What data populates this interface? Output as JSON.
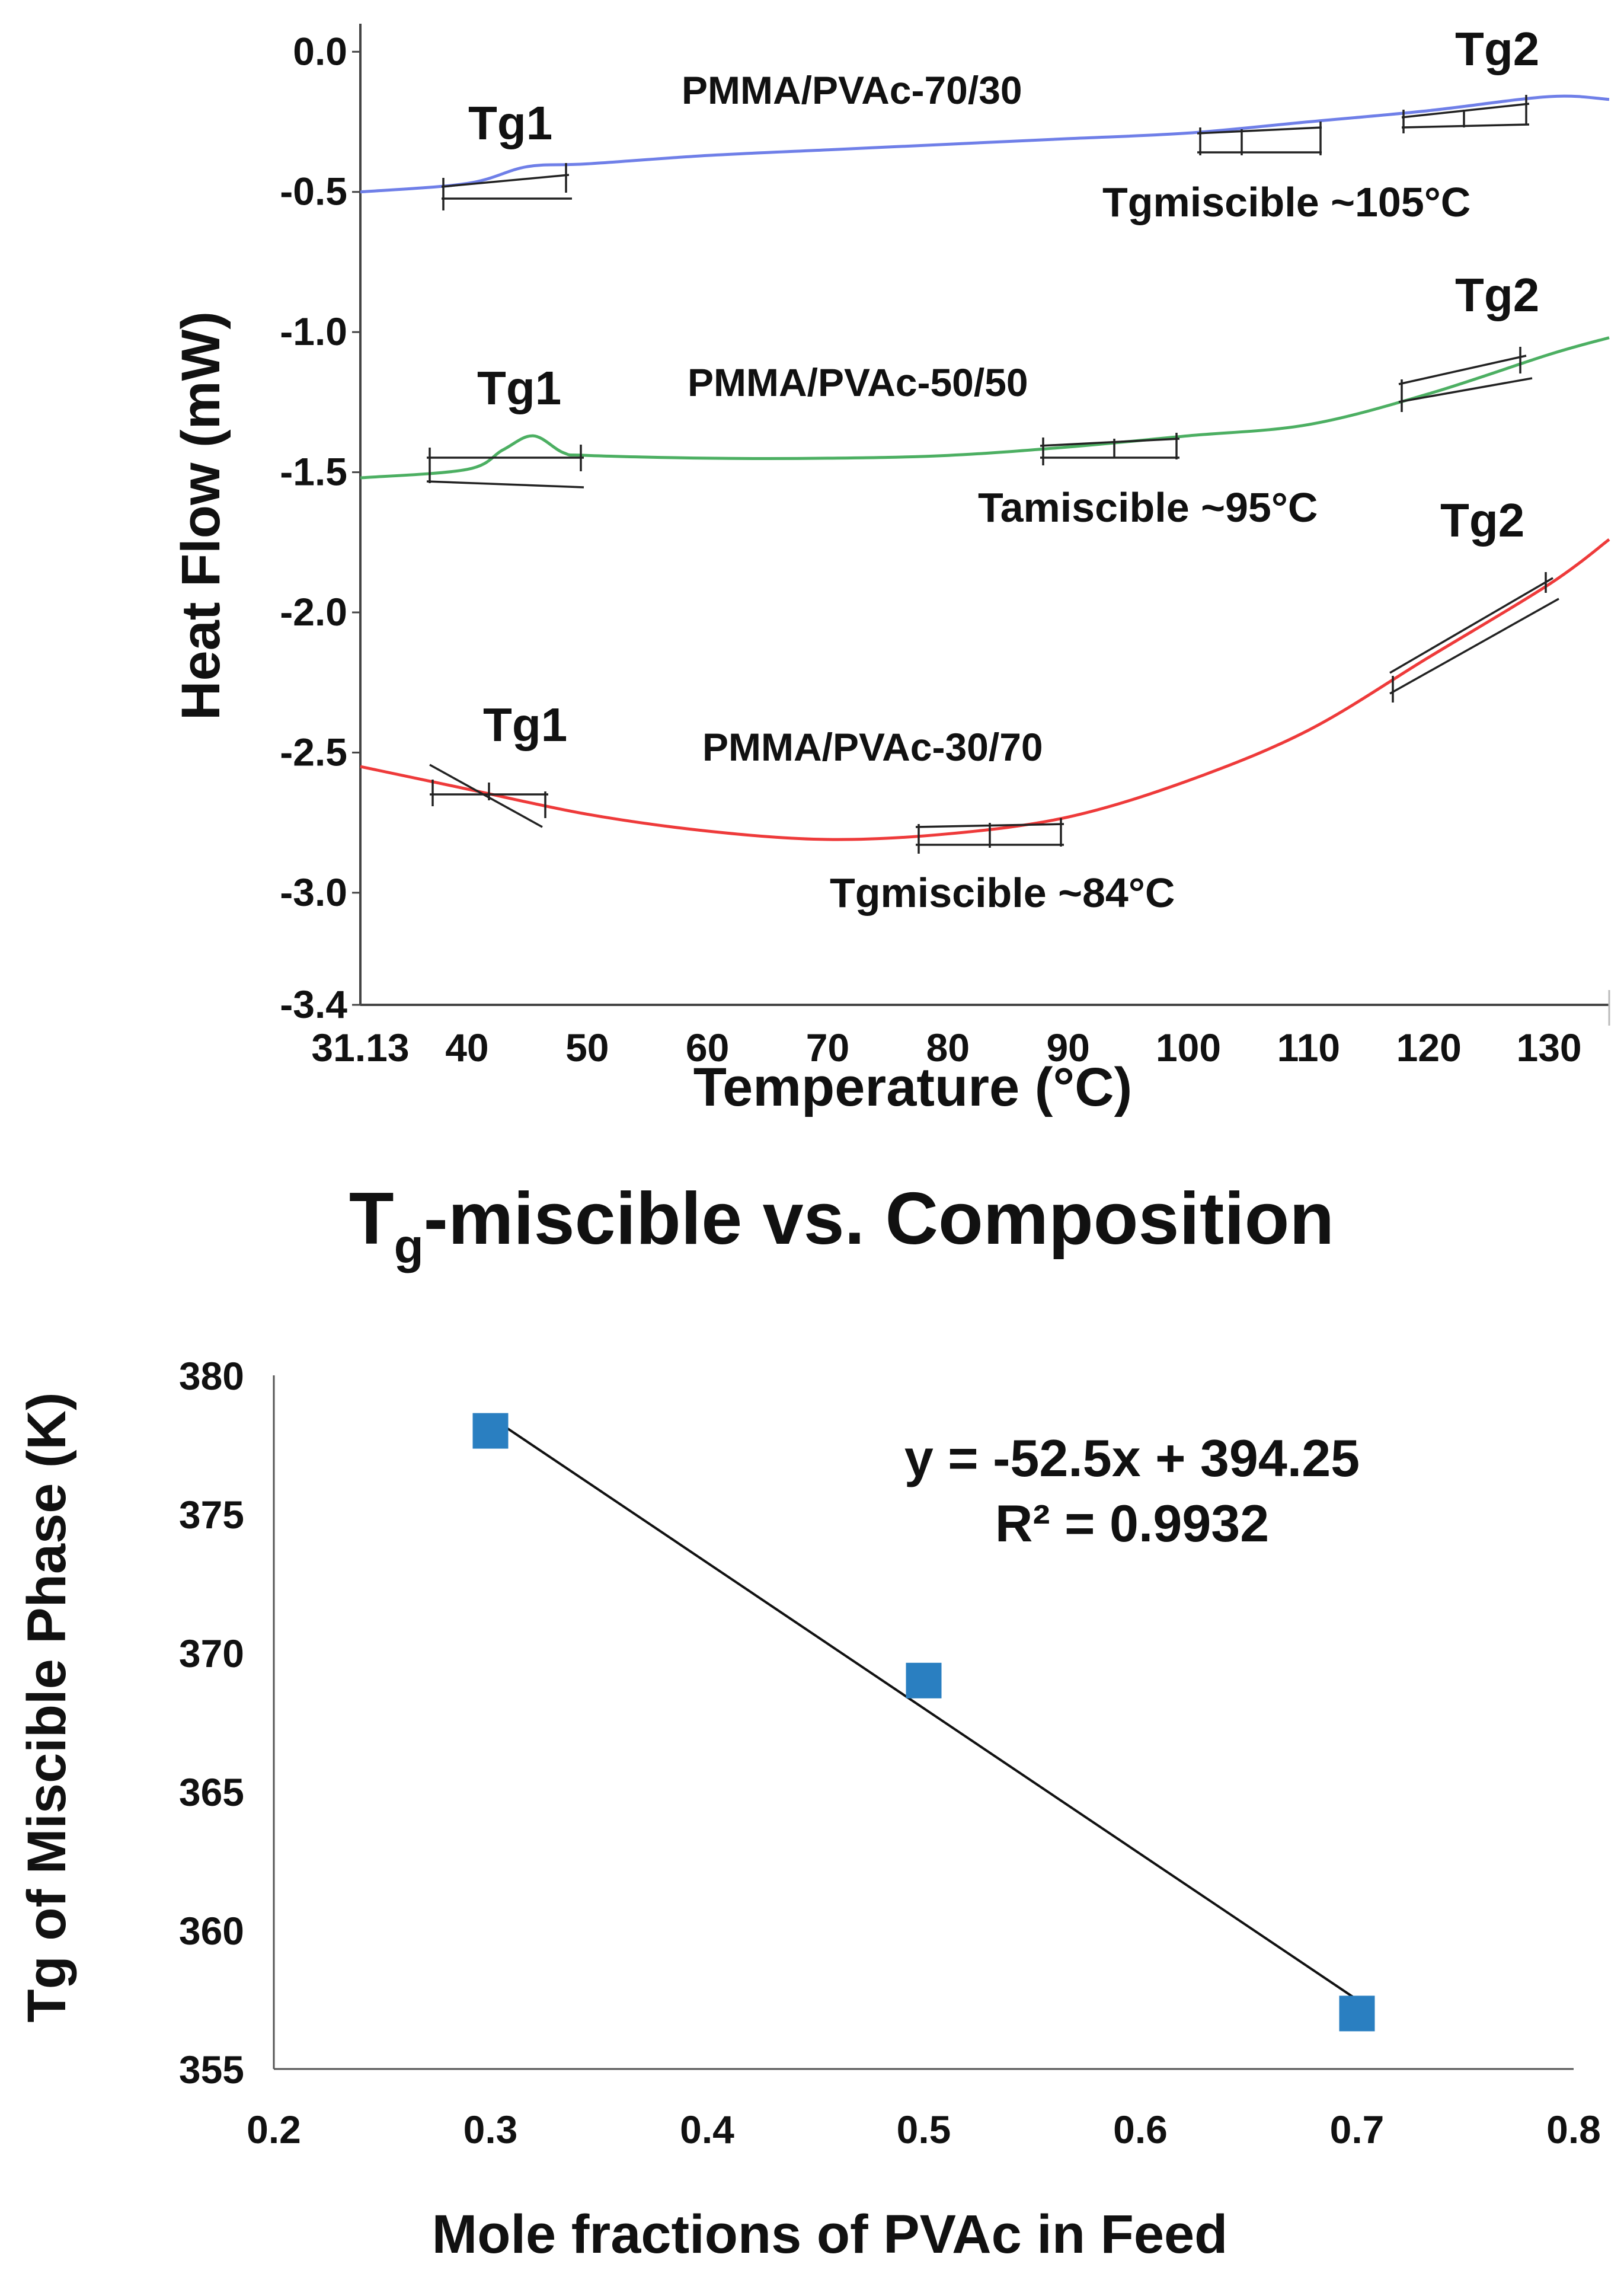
{
  "chart_data": [
    {
      "type": "line",
      "title": "",
      "xlabel": "Temperature (°C)",
      "ylabel": "Heat Flow (mW)",
      "x_ticks": [
        "31.13",
        "40",
        "50",
        "60",
        "70",
        "80",
        "90",
        "100",
        "110",
        "120",
        "130"
      ],
      "y_ticks": [
        "0.0",
        "-0.5",
        "-1.0",
        "-1.5",
        "-2.0",
        "-2.5",
        "-3.0",
        "-3.4"
      ],
      "xlim": [
        31.13,
        135
      ],
      "ylim": [
        -3.4,
        0.1
      ],
      "series": [
        {
          "name": "PMMA/PVAc-70/30",
          "color": "#6f7fe8",
          "x": [
            31.13,
            40,
            45,
            50,
            60,
            70,
            80,
            90,
            100,
            110,
            120,
            130,
            135
          ],
          "y": [
            -0.5,
            -0.47,
            -0.41,
            -0.4,
            -0.37,
            -0.35,
            -0.33,
            -0.31,
            -0.29,
            -0.25,
            -0.21,
            -0.16,
            -0.17
          ]
        },
        {
          "name": "PMMA/PVAc-50/50",
          "color": "#4caf62",
          "x": [
            31.13,
            40,
            43,
            45.5,
            48,
            50,
            60,
            70,
            80,
            90,
            100,
            110,
            120,
            130,
            135
          ],
          "y": [
            -1.52,
            -1.49,
            -1.42,
            -1.37,
            -1.43,
            -1.44,
            -1.45,
            -1.45,
            -1.44,
            -1.41,
            -1.37,
            -1.33,
            -1.22,
            -1.08,
            -1.02
          ]
        },
        {
          "name": "PMMA/PVAc-30/70",
          "color": "#ee3a3a",
          "x": [
            31.13,
            40,
            50,
            60,
            70,
            80,
            90,
            100,
            110,
            120,
            130,
            135
          ],
          "y": [
            -2.55,
            -2.63,
            -2.72,
            -2.78,
            -2.81,
            -2.79,
            -2.73,
            -2.6,
            -2.42,
            -2.16,
            -1.9,
            -1.74
          ]
        }
      ],
      "annotations": [
        {
          "text": "PMMA/PVAc-70/30"
        },
        {
          "text": "PMMA/PVAc-50/50"
        },
        {
          "text": "PMMA/PVAc-30/70"
        },
        {
          "text": "Tg1"
        },
        {
          "text": "Tg2"
        },
        {
          "text": "Tgmiscible ~105°C"
        },
        {
          "text": "Tamiscible ~95°C"
        },
        {
          "text": "Tgmiscible ~84°C"
        }
      ],
      "labels": {
        "series_70_30": "PMMA/PVAc-70/30",
        "series_50_50": "PMMA/PVAc-50/50",
        "series_30_70": "PMMA/PVAc-30/70",
        "tg1": "Tg1",
        "tg2": "Tg2",
        "tgm_70_30": "Tgmiscible ~105°C",
        "tgm_50_50": "Tamiscible ~95°C",
        "tgm_30_70": "Tgmiscible ~84°C"
      }
    },
    {
      "type": "scatter",
      "title": "Tg-miscible vs. Composition",
      "title_main": "T",
      "title_sub": "g",
      "title_rest": "-miscible vs. Composition",
      "xlabel": "Mole fractions of PVAc in Feed",
      "ylabel": "Tg of Miscible Phase (K)",
      "xlim": [
        0.2,
        0.8
      ],
      "ylim": [
        355,
        380
      ],
      "x_ticks": [
        "0.2",
        "0.3",
        "0.4",
        "0.5",
        "0.6",
        "0.7",
        "0.8"
      ],
      "y_ticks": [
        "355",
        "360",
        "365",
        "370",
        "375",
        "380"
      ],
      "series": [
        {
          "name": "Tg miscible",
          "color": "#2a7fc1",
          "x": [
            0.3,
            0.5,
            0.7
          ],
          "y": [
            378,
            369,
            357
          ]
        }
      ],
      "trendline": {
        "slope": -52.5,
        "intercept": 394.25,
        "x_range": [
          0.3,
          0.7
        ],
        "color": "#111111"
      },
      "equation": "y = -52.5x + 394.25",
      "r_squared": "R² = 0.9932"
    }
  ]
}
